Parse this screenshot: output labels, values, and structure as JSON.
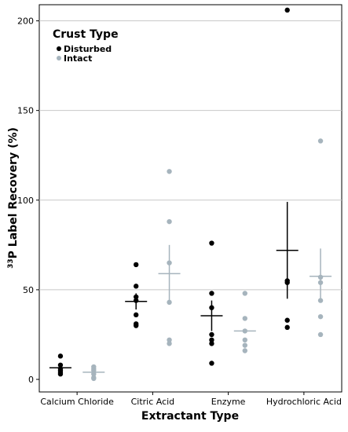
{
  "chart_data": {
    "type": "scatter",
    "xlabel": "Extractant Type",
    "ylabel_superscript": "33",
    "ylabel": "P Label Recovery (%)",
    "categories": [
      "Calcium Chloride",
      "Citric Acid",
      "Enzyme",
      "Hydrochloric Acid"
    ],
    "ylim": [
      -7,
      209
    ],
    "yticks": [
      "0",
      "50",
      "100",
      "150",
      "200"
    ],
    "grid": true,
    "legend": {
      "title": "Crust Type",
      "position": "top-left"
    },
    "colors": {
      "Disturbed": "#000000",
      "Intact": "#a6b4bd"
    },
    "series": [
      {
        "name": "Disturbed",
        "points": [
          [
            13,
            8,
            6,
            5,
            4,
            3
          ],
          [
            64,
            52,
            46,
            44,
            36,
            31,
            30
          ],
          [
            76,
            48,
            40,
            25,
            22,
            20,
            9
          ],
          [
            206,
            55,
            54,
            33,
            29
          ]
        ],
        "means": [
          6.5,
          43.5,
          35.5,
          72
        ],
        "error_low": [
          6.5,
          39,
          27,
          45
        ],
        "error_high": [
          6.5,
          48,
          44,
          99
        ]
      },
      {
        "name": "Intact",
        "points": [
          [
            7,
            6,
            5,
            3,
            1,
            0.5
          ],
          [
            116,
            88,
            65,
            43,
            22,
            20
          ],
          [
            48,
            34,
            27,
            22,
            19,
            16
          ],
          [
            133,
            57,
            54,
            44,
            35,
            25
          ]
        ],
        "means": [
          4,
          59,
          27,
          57.5
        ],
        "error_low": [
          4,
          44,
          27,
          44
        ],
        "error_high": [
          4,
          75,
          27,
          73
        ]
      }
    ]
  }
}
